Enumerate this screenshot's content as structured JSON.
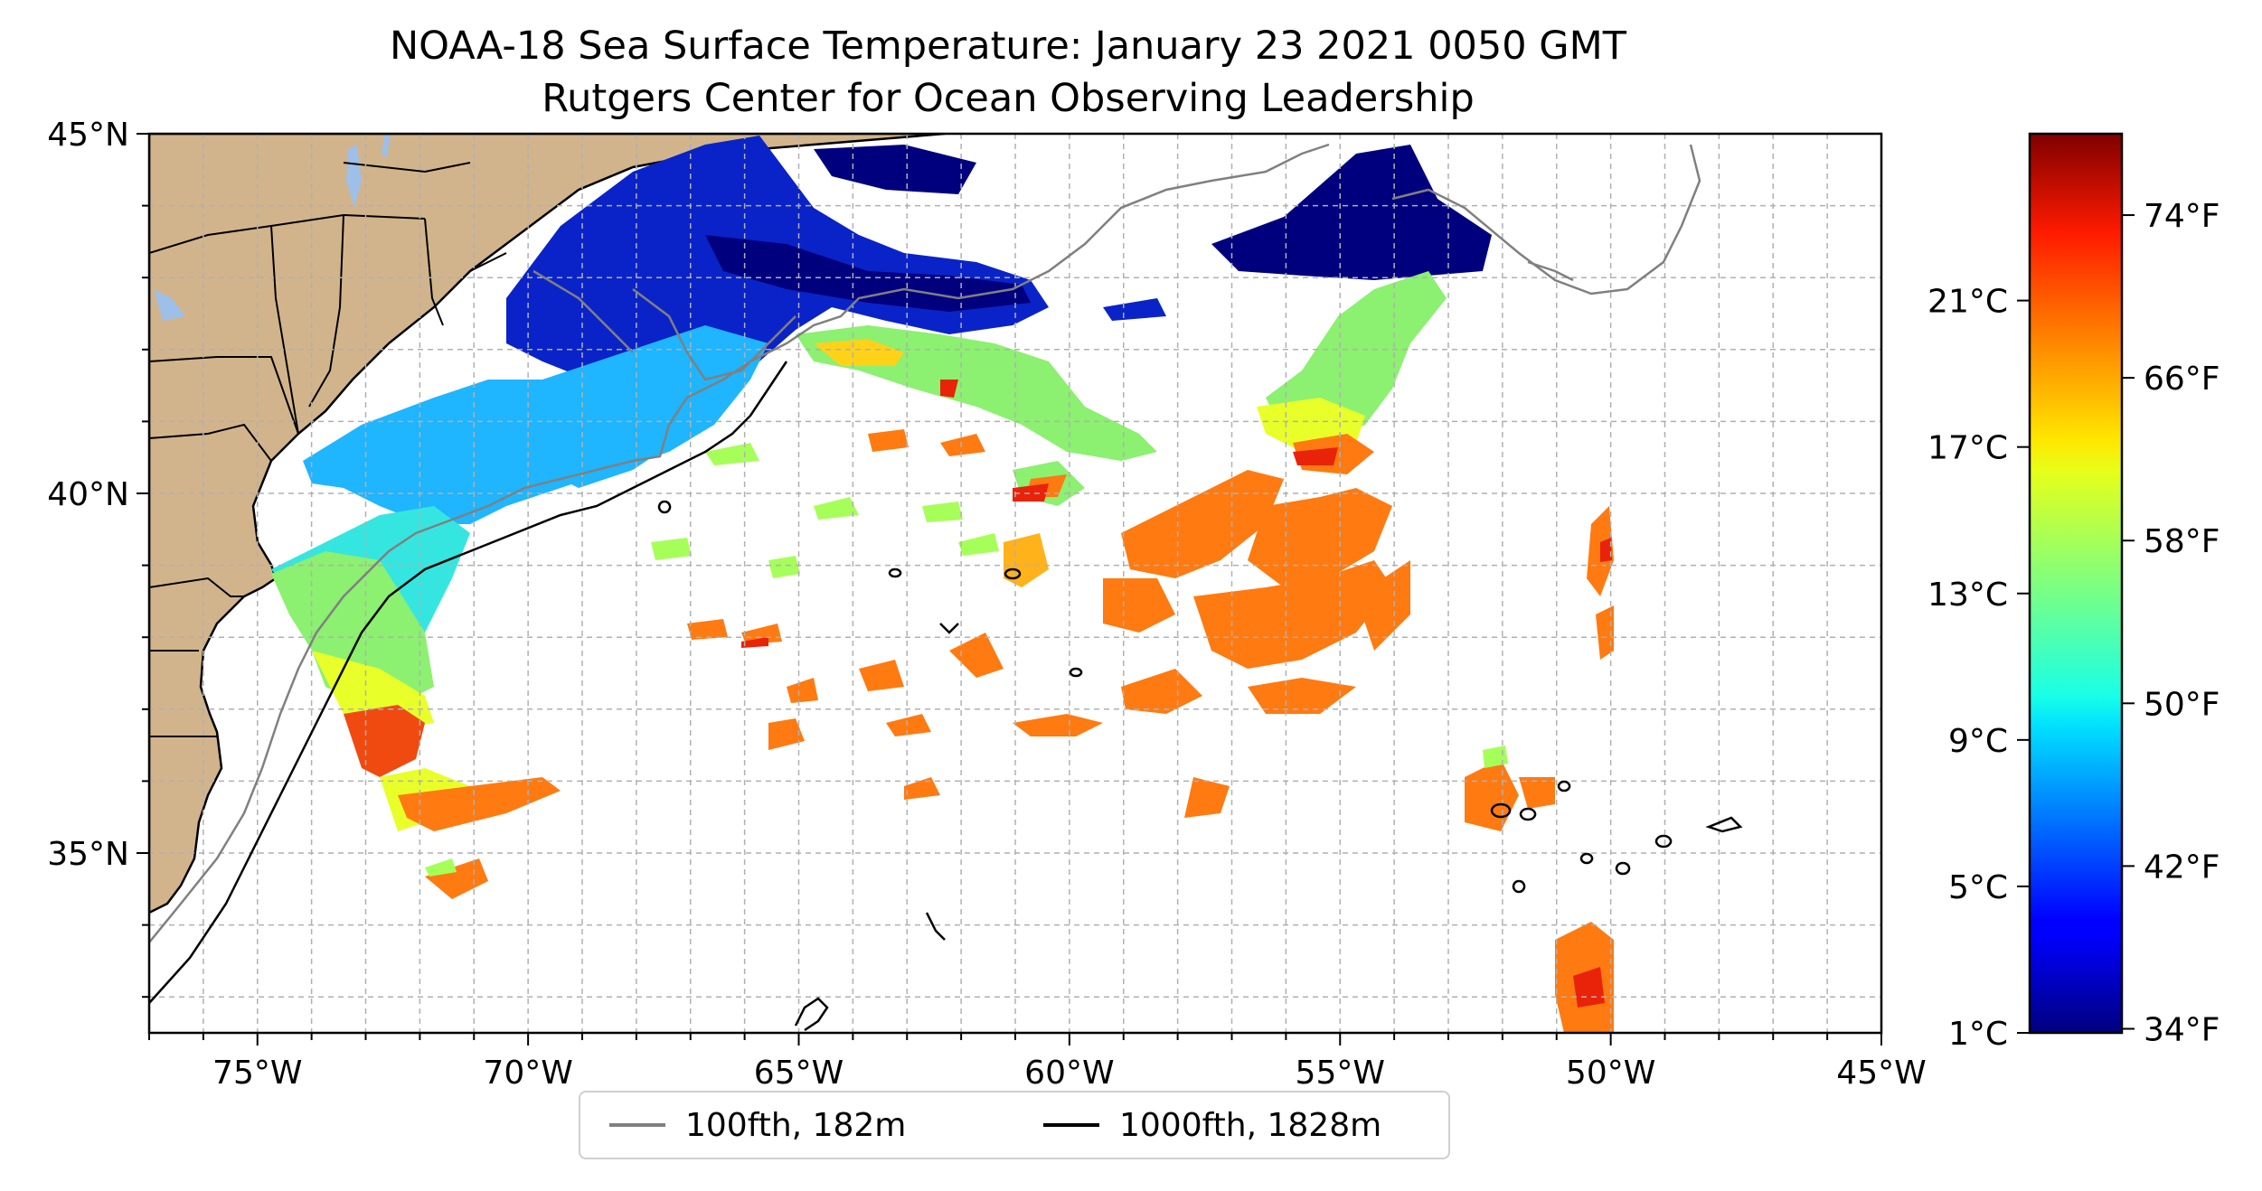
{
  "title": {
    "line1": "NOAA-18 Sea Surface Temperature: January 23 2021 0050 GMT",
    "line2": "Rutgers Center for Ocean Observing Leadership"
  },
  "map": {
    "lon_range": [
      -77,
      -45
    ],
    "lat_range": [
      32.5,
      45
    ],
    "lon_ticks": [
      {
        "value": -75,
        "label": "75°W"
      },
      {
        "value": -70,
        "label": "70°W"
      },
      {
        "value": -65,
        "label": "65°W"
      },
      {
        "value": -60,
        "label": "60°W"
      },
      {
        "value": -55,
        "label": "55°W"
      },
      {
        "value": -50,
        "label": "50°W"
      },
      {
        "value": -45,
        "label": "45°W"
      }
    ],
    "lat_ticks": [
      {
        "value": 35,
        "label": "35°N"
      },
      {
        "value": 40,
        "label": "40°N"
      },
      {
        "value": 45,
        "label": "45°N"
      }
    ],
    "grid": true,
    "land_color": "#d2b48c",
    "lake_color": "#9ebfe8"
  },
  "legend": {
    "placement": "bottom-center",
    "items": [
      {
        "label": "100fth, 182m",
        "color": "#808080"
      },
      {
        "label": "1000fth, 1828m",
        "color": "#000000"
      }
    ]
  },
  "colorbar": {
    "colormap": "jet",
    "range_f": [
      33.8,
      78
    ],
    "celsius_ticks": [
      {
        "value": 1,
        "label": "1°C"
      },
      {
        "value": 5,
        "label": "5°C"
      },
      {
        "value": 9,
        "label": "9°C"
      },
      {
        "value": 13,
        "label": "13°C"
      },
      {
        "value": 17,
        "label": "17°C"
      },
      {
        "value": 21,
        "label": "21°C"
      }
    ],
    "fahrenheit_ticks": [
      {
        "value": 34,
        "label": "34°F"
      },
      {
        "value": 42,
        "label": "42°F"
      },
      {
        "value": 50,
        "label": "50°F"
      },
      {
        "value": 58,
        "label": "58°F"
      },
      {
        "value": 66,
        "label": "66°F"
      },
      {
        "value": 74,
        "label": "74°F"
      }
    ]
  }
}
